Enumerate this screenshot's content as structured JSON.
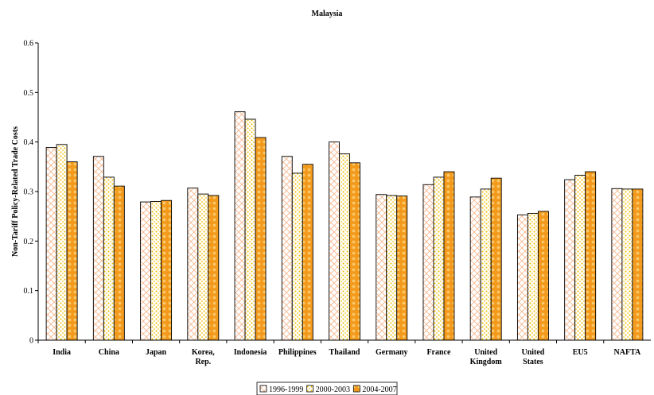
{
  "chart_data": {
    "type": "bar",
    "title": "Malaysia",
    "xlabel": "",
    "ylabel": "Non-Tariff Policy-Related Trade Costs",
    "ylim": [
      0,
      0.6
    ],
    "yticks": [
      "0",
      "0.1",
      "0.2",
      "0.3",
      "0.4",
      "0.5",
      "0.6"
    ],
    "grid": false,
    "legend_position": "bottom",
    "categories": [
      [
        "India"
      ],
      [
        "China"
      ],
      [
        "Japan"
      ],
      [
        "Korea,",
        "Rep."
      ],
      [
        "Indonesia"
      ],
      [
        "Philippines"
      ],
      [
        "Thailand"
      ],
      [
        "Germany"
      ],
      [
        "France"
      ],
      [
        "United",
        "Kingdom"
      ],
      [
        "United",
        "States"
      ],
      [
        "EU5"
      ],
      [
        "NAFTA"
      ]
    ],
    "series": [
      {
        "name": "1996-1999",
        "pattern": "crosshatch",
        "color": "#f6b58c",
        "values": [
          0.389,
          0.371,
          0.279,
          0.307,
          0.461,
          0.371,
          0.4,
          0.294,
          0.314,
          0.289,
          0.253,
          0.324,
          0.306
        ]
      },
      {
        "name": "2000-2003",
        "pattern": "dots",
        "color": "#f2c318",
        "values": [
          0.395,
          0.329,
          0.28,
          0.295,
          0.446,
          0.337,
          0.376,
          0.292,
          0.329,
          0.305,
          0.256,
          0.333,
          0.305
        ]
      },
      {
        "name": "2004-2007",
        "pattern": "circles",
        "color": "#f39a1c",
        "values": [
          0.36,
          0.311,
          0.282,
          0.292,
          0.409,
          0.355,
          0.358,
          0.291,
          0.34,
          0.327,
          0.26,
          0.34,
          0.305
        ]
      }
    ]
  }
}
